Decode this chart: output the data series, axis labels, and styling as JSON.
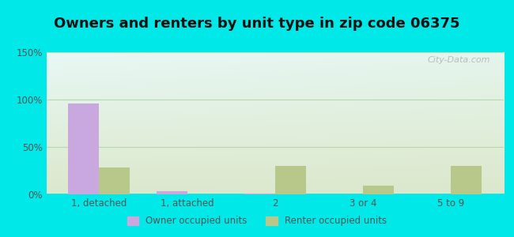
{
  "title": "Owners and renters by unit type in zip code 06375",
  "categories": [
    "1, detached",
    "1, attached",
    "2",
    "3 or 4",
    "5 to 9"
  ],
  "owner_values": [
    96,
    3,
    1,
    0,
    0
  ],
  "renter_values": [
    28,
    0,
    30,
    9,
    30
  ],
  "owner_color": "#c9a8e0",
  "renter_color": "#b8c88a",
  "ylim": [
    0,
    150
  ],
  "yticks": [
    0,
    50,
    100,
    150
  ],
  "ytick_labels": [
    "0%",
    "50%",
    "100%",
    "150%"
  ],
  "outer_bg": "#00e8e8",
  "grad_top_left": "#e8f8f5",
  "grad_bottom_right": "#dce8cc",
  "bar_width": 0.35,
  "title_fontsize": 13,
  "watermark": "City-Data.com",
  "tick_color": "#555555",
  "grid_color": "#b8d8b0",
  "title_color": "#111111"
}
